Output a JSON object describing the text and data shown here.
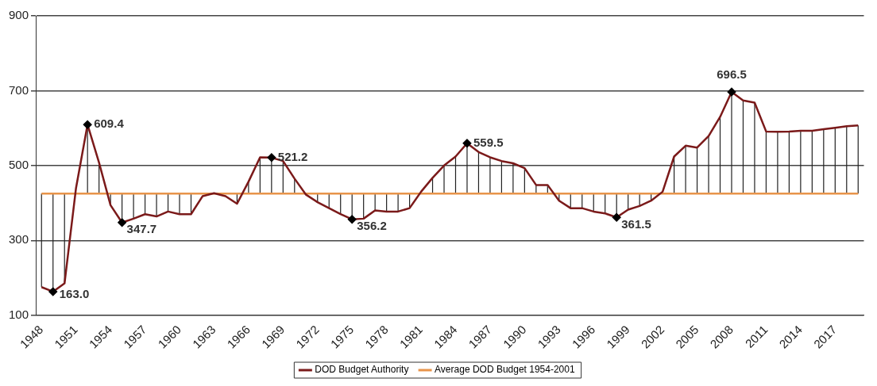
{
  "chart_data": {
    "type": "line",
    "categories": [
      "1948",
      null,
      null,
      "1951",
      null,
      null,
      "1954",
      null,
      null,
      "1957",
      null,
      null,
      "1960",
      null,
      null,
      "1963",
      null,
      null,
      "1966",
      null,
      null,
      "1969",
      null,
      null,
      "1972",
      null,
      null,
      "1975",
      null,
      null,
      "1978",
      null,
      null,
      "1981",
      null,
      null,
      "1984",
      null,
      null,
      "1987",
      null,
      null,
      "1990",
      null,
      null,
      "1993",
      null,
      null,
      "1996",
      null,
      null,
      "1999",
      null,
      null,
      "2002",
      null,
      null,
      "2005",
      null,
      null,
      "2008",
      null,
      null,
      "2011",
      null,
      null,
      "2014",
      null,
      null,
      "2017",
      null,
      null
    ],
    "series": [
      {
        "name": "DOD Budget Authority",
        "color": "#7b1a1a",
        "values": [
          175,
          163.0,
          185,
          440,
          609.4,
          508,
          394,
          347.7,
          358,
          370,
          364,
          377,
          370,
          370,
          418,
          426,
          418,
          398,
          457,
          522,
          521.2,
          512,
          465,
          422,
          402,
          386,
          370,
          356.2,
          358,
          380,
          377,
          377,
          386,
          430,
          467,
          500,
          524,
          559.5,
          536,
          522,
          512,
          506,
          493,
          448,
          448,
          406,
          386,
          386,
          377,
          372,
          361.5,
          382,
          392,
          406,
          430,
          524,
          553,
          548,
          579,
          630,
          696.5,
          674,
          668,
          591,
          590,
          591,
          593,
          593,
          597,
          601,
          605,
          607
        ],
        "errors": [
          [
            175,
            425
          ],
          [
            163.0,
            425
          ],
          [
            185,
            425
          ],
          null,
          [
            425,
            609.4
          ],
          [
            425,
            508
          ],
          [
            394,
            425
          ],
          [
            347.7,
            425
          ],
          [
            358,
            425
          ],
          [
            370,
            425
          ],
          [
            364,
            425
          ],
          [
            377,
            425
          ],
          [
            370,
            425
          ],
          [
            370,
            425
          ],
          null,
          null,
          null,
          [
            398,
            425
          ],
          [
            425,
            457
          ],
          [
            425,
            522
          ],
          [
            425,
            521.2
          ],
          [
            425,
            512
          ],
          [
            425,
            465
          ],
          null,
          [
            402,
            425
          ],
          [
            386,
            425
          ],
          [
            370,
            425
          ],
          [
            356.2,
            425
          ],
          [
            358,
            425
          ],
          [
            380,
            425
          ],
          [
            377,
            425
          ],
          [
            377,
            425
          ],
          [
            386,
            425
          ],
          null,
          [
            425,
            467
          ],
          [
            425,
            500
          ],
          [
            425,
            524
          ],
          [
            425,
            559.5
          ],
          [
            425,
            536
          ],
          [
            425,
            522
          ],
          [
            425,
            512
          ],
          [
            425,
            506
          ],
          [
            425,
            493
          ],
          [
            425,
            448
          ],
          [
            425,
            448
          ],
          [
            406,
            425
          ],
          [
            386,
            425
          ],
          [
            386,
            425
          ],
          [
            377,
            425
          ],
          [
            372,
            425
          ],
          [
            361.5,
            425
          ],
          [
            382,
            425
          ],
          [
            392,
            425
          ],
          [
            406,
            425
          ],
          null,
          [
            425,
            524
          ],
          [
            425,
            553
          ],
          [
            425,
            548
          ],
          [
            425,
            579
          ],
          [
            425,
            630
          ],
          [
            425,
            696.5
          ],
          [
            425,
            674
          ],
          [
            425,
            668
          ],
          [
            425,
            591
          ],
          [
            425,
            590
          ],
          [
            425,
            591
          ],
          [
            425,
            593
          ],
          [
            425,
            593
          ],
          [
            425,
            597
          ],
          [
            425,
            601
          ],
          [
            425,
            605
          ],
          [
            425,
            607
          ]
        ],
        "value_labels": [
          null,
          "163.0",
          null,
          null,
          "609.4",
          null,
          null,
          "347.7",
          null,
          null,
          null,
          null,
          null,
          null,
          null,
          null,
          null,
          null,
          null,
          null,
          "521.2",
          null,
          null,
          null,
          null,
          null,
          null,
          "356.2",
          null,
          null,
          null,
          null,
          null,
          null,
          null,
          null,
          null,
          "559.5",
          null,
          null,
          null,
          null,
          null,
          null,
          null,
          null,
          null,
          null,
          null,
          null,
          "361.5",
          null,
          null,
          null,
          null,
          null,
          null,
          null,
          null,
          null,
          "696.5",
          null,
          null,
          null,
          null,
          null,
          null,
          null,
          null,
          null,
          null,
          null
        ]
      },
      {
        "name": "Average DOD Budget 1954-2001",
        "color": "#e8944a",
        "values": [
          425,
          425,
          425,
          425,
          425,
          425,
          425,
          425,
          425,
          425,
          425,
          425,
          425,
          425,
          425,
          425,
          425,
          425,
          425,
          425,
          425,
          425,
          425,
          425,
          425,
          425,
          425,
          425,
          425,
          425,
          425,
          425,
          425,
          425,
          425,
          425,
          425,
          425,
          425,
          425,
          425,
          425,
          425,
          425,
          425,
          425,
          425,
          425,
          425,
          425,
          425,
          425,
          425,
          425,
          425,
          425,
          425,
          425,
          425,
          425,
          425,
          425,
          425,
          425,
          425,
          425,
          425,
          425,
          425,
          425,
          425,
          425
        ]
      }
    ],
    "ylim": [
      100,
      900
    ],
    "yticks": [
      100,
      300,
      500,
      700,
      900
    ],
    "grid": "y",
    "legend": "bottom"
  }
}
